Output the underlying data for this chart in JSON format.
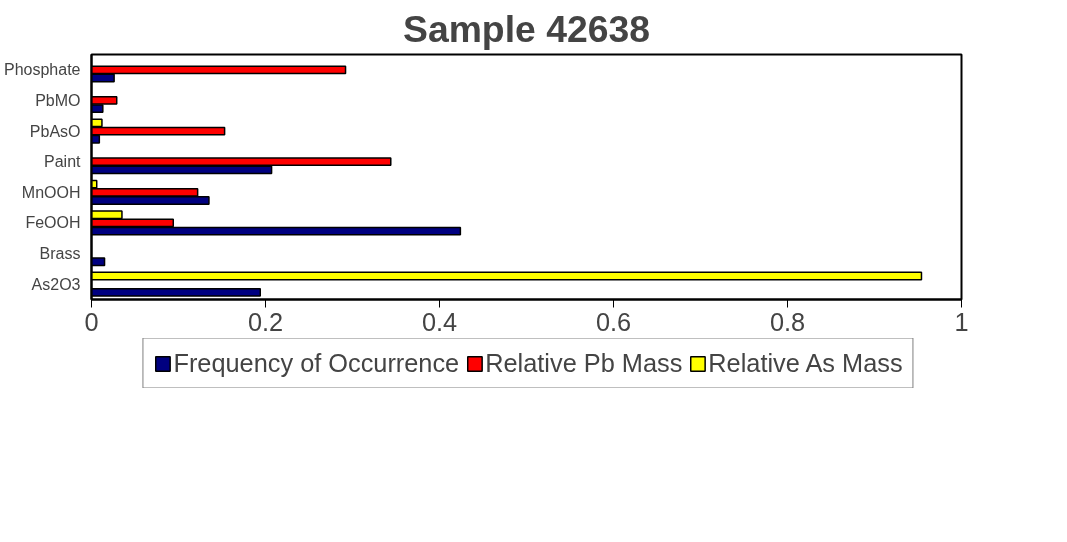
{
  "chart_data": {
    "type": "bar",
    "orientation": "horizontal",
    "title": "Sample 42638",
    "categories": [
      "Phosphate",
      "PbMO",
      "PbAsO",
      "Paint",
      "MnOOH",
      "FeOOH",
      "Brass",
      "As2O3"
    ],
    "series": [
      {
        "name": "Frequency of Occurrence",
        "color": "#000080",
        "values": [
          0.026,
          0.013,
          0.009,
          0.207,
          0.135,
          0.424,
          0.015,
          0.194
        ]
      },
      {
        "name": "Relative Pb Mass",
        "color": "#ff0000",
        "values": [
          0.292,
          0.029,
          0.153,
          0.344,
          0.122,
          0.094,
          null,
          null
        ]
      },
      {
        "name": "Relative As Mass",
        "color": "#ffff00",
        "values": [
          null,
          null,
          0.012,
          null,
          0.006,
          0.035,
          null,
          0.954
        ]
      }
    ],
    "xlim": [
      0,
      1
    ],
    "xticks": [
      0,
      0.2,
      0.4,
      0.6,
      0.8,
      1
    ],
    "legend": "bottom"
  }
}
